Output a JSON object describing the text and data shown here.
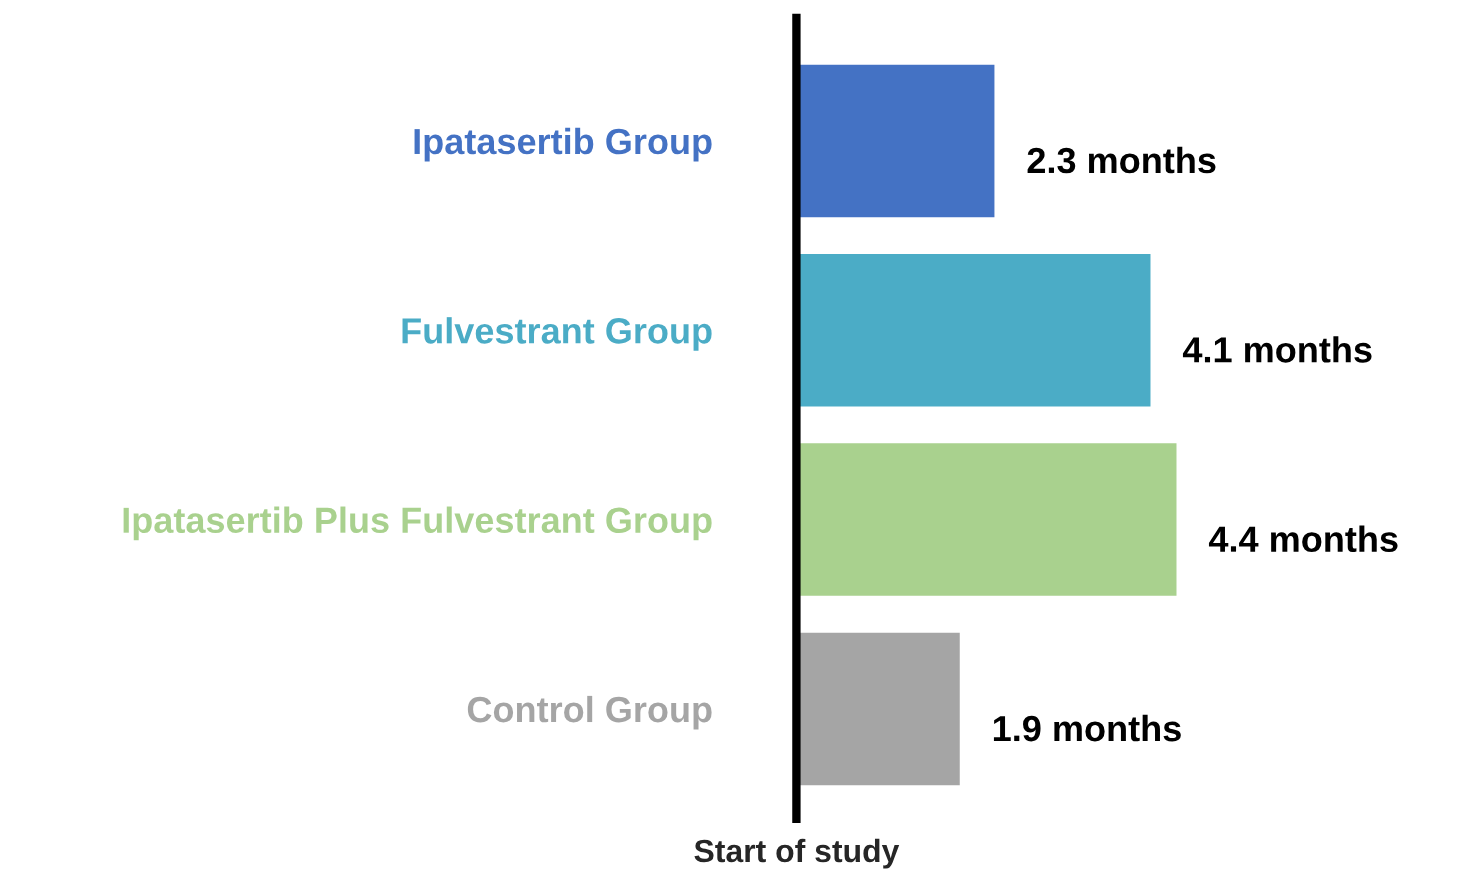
{
  "chart_data": {
    "type": "bar",
    "orientation": "horizontal",
    "xlabel": "Start of study",
    "categories": [
      "Ipatasertib Group",
      "Fulvestrant Group",
      "Ipatasertib Plus Fulvestrant Group",
      "Control Group"
    ],
    "values": [
      2.3,
      4.1,
      4.4,
      1.9
    ],
    "colors": [
      "#4472c4",
      "#4bacc6",
      "#a9d18e",
      "#a5a5a5"
    ],
    "value_labels": [
      "2.3 months",
      "4.1 months",
      "4.4 months",
      "1.9 months"
    ],
    "grid": false,
    "legend": false
  }
}
